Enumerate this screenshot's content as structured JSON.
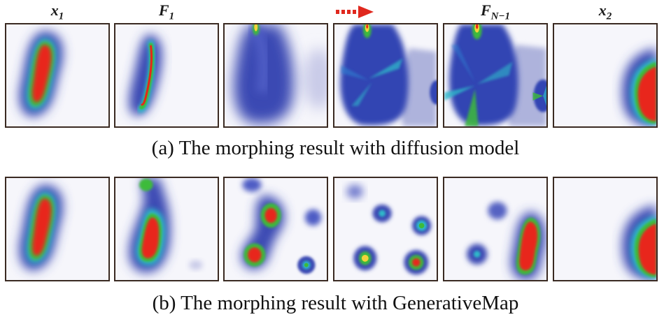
{
  "header": {
    "labels": [
      {
        "main": "x",
        "sub": "1"
      },
      {
        "main": "F",
        "sub": "1"
      },
      {
        "main": "",
        "sub": ""
      },
      {
        "main": "",
        "sub": ""
      },
      {
        "main": "F",
        "sub": "N−1"
      },
      {
        "main": "x",
        "sub": "2"
      }
    ],
    "arrow_color": "#e0281e"
  },
  "rows": [
    {
      "caption": "(a)  The morphing result with diffusion model"
    },
    {
      "caption": "(b)  The morphing result with GenerativeMap"
    }
  ],
  "colors": {
    "low": "#3b49b3",
    "mid": "#2fb8c9",
    "green": "#3dbb3a",
    "yellow": "#f2d23a",
    "high": "#e8251a",
    "background": "#f6f6fb",
    "frame": "#3a2a22"
  }
}
